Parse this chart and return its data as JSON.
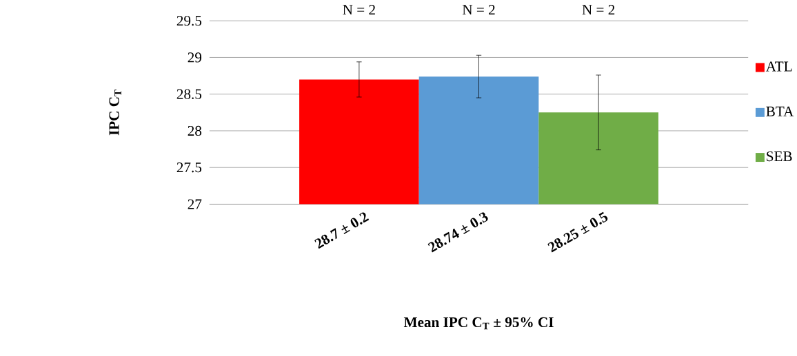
{
  "chart_data": {
    "type": "bar",
    "xlabel": "Mean IPC C$_{T}$ ± 95% CI",
    "ylabel": "IPC C$_{T}$",
    "categories": [
      "28.7 ± 0.2",
      "28.74 ± 0.3",
      "28.25 ± 0.5"
    ],
    "series": [
      {
        "name": "ATL",
        "color": "#ff0000",
        "values": [
          28.7,
          null,
          null
        ],
        "errors": [
          0.24,
          null,
          null
        ]
      },
      {
        "name": "BTA",
        "color": "#5b9bd5",
        "values": [
          null,
          28.74,
          null
        ],
        "errors": [
          null,
          0.29,
          null
        ]
      },
      {
        "name": "SEB",
        "color": "#70ad47",
        "values": [
          null,
          null,
          28.25
        ],
        "errors": [
          null,
          null,
          0.51
        ]
      }
    ],
    "ylim": [
      27,
      29.5
    ],
    "yticks": [
      27,
      27.5,
      28,
      28.5,
      29,
      29.5
    ],
    "grid": "y",
    "legend": "right",
    "annotations": [
      "N = 2",
      "N = 2",
      "N = 2"
    ]
  }
}
